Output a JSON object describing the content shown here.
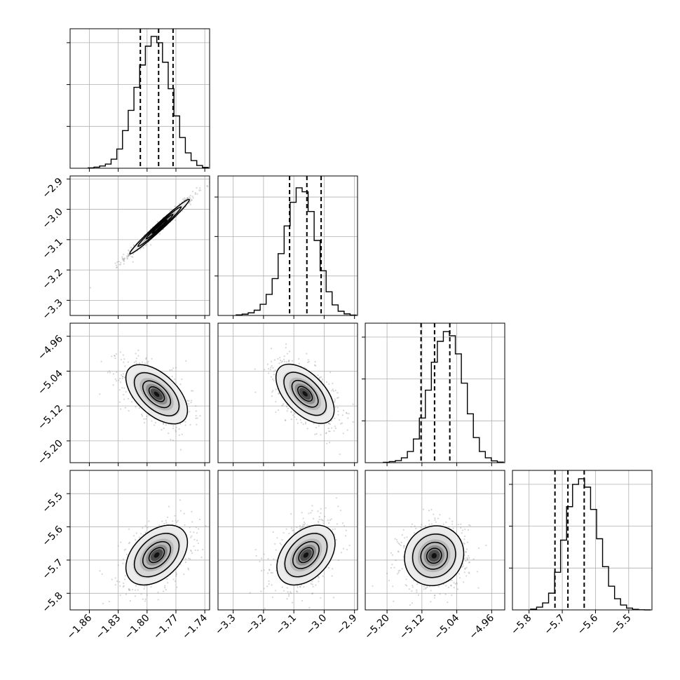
{
  "chart_data": {
    "type": "corner",
    "parameters": [
      {
        "range": [
          -1.88,
          -1.735
        ],
        "ticks": [
          -1.86,
          -1.83,
          -1.8,
          -1.77,
          -1.74
        ],
        "tick_labels": [
          "−1.86",
          "−1.83",
          "−1.80",
          "−1.77",
          "−1.74"
        ],
        "median": -1.788,
        "q16": -1.807,
        "q84": -1.773,
        "hist_values": [
          0.3,
          0.8,
          1.6,
          3.0,
          6.5,
          13.8,
          27.0,
          41.5,
          58.0,
          74.0,
          87.5,
          94.5,
          90.0,
          76.0,
          57.0,
          37.5,
          22.0,
          11.0,
          5.5,
          2.0,
          0.6
        ],
        "hist_ymax": 100
      },
      {
        "range": [
          -3.35,
          -2.89
        ],
        "ticks": [
          -3.3,
          -3.2,
          -3.1,
          -3.0,
          -2.9
        ],
        "tick_labels": [
          "−3.3",
          "−3.2",
          "−3.1",
          "−3.0",
          "−2.9"
        ],
        "median": -3.057,
        "q16": -3.114,
        "q84": -3.01,
        "hist_values": [
          0.4,
          1.0,
          2.0,
          4.0,
          8.5,
          16.0,
          28.0,
          47.0,
          68.0,
          86.0,
          97.0,
          94.0,
          79.0,
          57.0,
          34.0,
          18.0,
          8.0,
          3.2,
          1.2,
          0.3
        ],
        "hist_ymax": 106
      },
      {
        "range": [
          -5.25,
          -4.93
        ],
        "ticks": [
          -5.2,
          -5.12,
          -5.04,
          -4.96
        ],
        "tick_labels": [
          "−5.20",
          "−5.12",
          "−5.04",
          "−4.96"
        ],
        "median": -5.091,
        "q16": -5.122,
        "q84": -5.056,
        "hist_values": [
          0.3,
          0.8,
          1.5,
          3.5,
          8.0,
          17.0,
          32.0,
          52.0,
          72.0,
          87.0,
          94.0,
          91.0,
          78.0,
          57.0,
          35.0,
          18.0,
          8.0,
          3.5,
          1.3,
          0.4
        ],
        "hist_ymax": 100
      },
      {
        "range": [
          -5.85,
          -5.43
        ],
        "ticks": [
          -5.8,
          -5.7,
          -5.6,
          -5.5
        ],
        "tick_labels": [
          "−5.8",
          "−5.7",
          "−5.6",
          "−5.5"
        ],
        "median": -5.683,
        "q16": -5.722,
        "q84": -5.634,
        "hist_values": [
          0.5,
          2.0,
          5.0,
          12.0,
          27.0,
          50.0,
          74.0,
          90.0,
          94.0,
          88.0,
          72.0,
          51.0,
          31.0,
          17.0,
          8.0,
          3.5,
          1.3,
          0.4,
          0.1,
          0.0
        ],
        "hist_ymax": 100
      }
    ],
    "pairs": [
      {
        "x": 0,
        "y": 1,
        "center": [
          -1.787,
          -3.057
        ],
        "spread": [
          0.0155,
          0.045
        ],
        "correlation": 0.985
      },
      {
        "x": 0,
        "y": 2,
        "center": [
          -1.79,
          -5.093
        ],
        "spread": [
          0.016,
          0.034
        ],
        "correlation": -0.55
      },
      {
        "x": 1,
        "y": 2,
        "center": [
          -3.063,
          -5.092
        ],
        "spread": [
          0.048,
          0.034
        ],
        "correlation": -0.55
      },
      {
        "x": 0,
        "y": 3,
        "center": [
          -1.79,
          -5.685
        ],
        "spread": [
          0.016,
          0.045
        ],
        "correlation": 0.42
      },
      {
        "x": 1,
        "y": 3,
        "center": [
          -3.06,
          -5.685
        ],
        "spread": [
          0.048,
          0.045
        ],
        "correlation": 0.4
      },
      {
        "x": 2,
        "y": 3,
        "center": [
          -5.092,
          -5.687
        ],
        "spread": [
          0.034,
          0.045
        ],
        "correlation": 0.08
      }
    ],
    "quantiles": [
      0.16,
      0.5,
      0.84
    ],
    "grid": true
  }
}
